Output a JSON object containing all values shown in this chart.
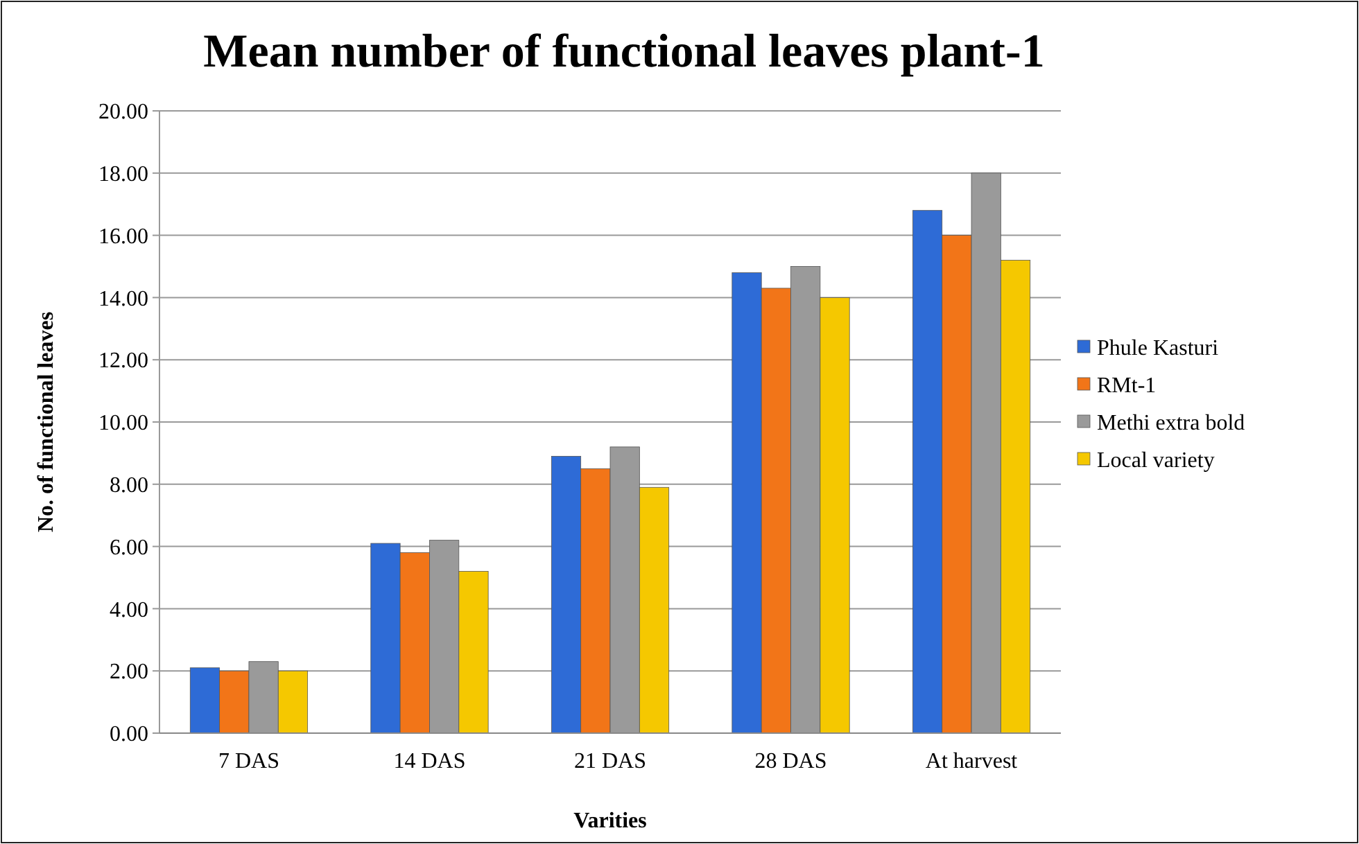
{
  "chart_data": {
    "type": "bar",
    "title": "Mean number of functional leaves plant-1",
    "xlabel": "Varities",
    "ylabel": "No. of functional leaves",
    "categories": [
      "7 DAS",
      "14 DAS",
      "21 DAS",
      "28 DAS",
      "At harvest"
    ],
    "series": [
      {
        "name": "Phule Kasturi",
        "color": "#2e6bd6",
        "values": [
          2.1,
          6.1,
          8.9,
          14.8,
          16.8
        ]
      },
      {
        "name": "RMt-1",
        "color": "#f27518",
        "values": [
          2.0,
          5.8,
          8.5,
          14.3,
          16.0
        ]
      },
      {
        "name": "Methi extra bold",
        "color": "#9a9a9a",
        "values": [
          2.3,
          6.2,
          9.2,
          15.0,
          18.0
        ]
      },
      {
        "name": "Local variety",
        "color": "#f5c800",
        "values": [
          2.0,
          5.2,
          7.9,
          14.0,
          15.2
        ]
      }
    ],
    "ylim": [
      0,
      20
    ],
    "yticks": [
      {
        "value": 0,
        "label": "0.00"
      },
      {
        "value": 2,
        "label": "2.00"
      },
      {
        "value": 4,
        "label": "4.00"
      },
      {
        "value": 6,
        "label": "6.00"
      },
      {
        "value": 8,
        "label": "8.00"
      },
      {
        "value": 10,
        "label": "10.00"
      },
      {
        "value": 12,
        "label": "12.00"
      },
      {
        "value": 14,
        "label": "14.00"
      },
      {
        "value": 16,
        "label": "16.00"
      },
      {
        "value": 18,
        "label": "18.00"
      },
      {
        "value": 20,
        "label": "20.00"
      }
    ],
    "grid": "y",
    "legend": "right"
  }
}
